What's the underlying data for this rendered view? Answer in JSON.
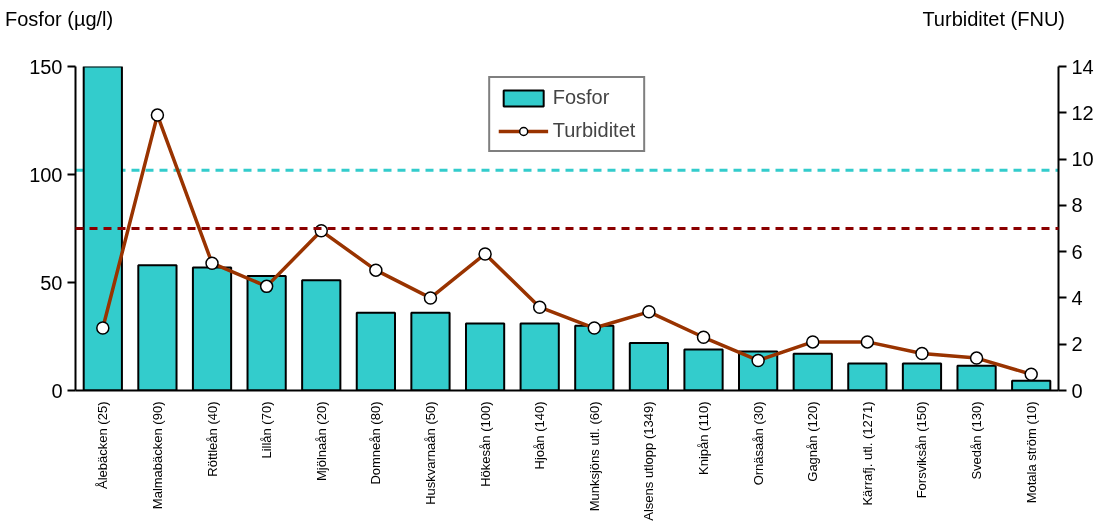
{
  "chart_data": {
    "type": "bar",
    "ylabel": "Fosfor (µg/l)",
    "y2label": "Turbiditet (FNU)",
    "categories": [
      "Ålebäcken (25)",
      "Malmabäcken (90)",
      "Röttleån (40)",
      "Lillån (70)",
      "Mjölnaån (20)",
      "Domneån (80)",
      "Huskvarnaån (50)",
      "Hökesån (100)",
      "Hjoån (140)",
      "Munksjöns utl. (60)",
      "Alsens utlopp (1349)",
      "Knipån (110)",
      "Ornäsaån (30)",
      "Gagnån (120)",
      "Kärrafj. utl. (1271)",
      "Forsviksån (150)",
      "Svedån (130)",
      "Motala ström (10)"
    ],
    "series": [
      {
        "name": "Fosfor",
        "color": "#33cccc",
        "values": [
          150,
          58,
          57,
          53,
          51,
          36,
          36,
          31,
          31,
          30,
          22,
          19,
          18,
          17,
          12.5,
          12.5,
          11.5,
          4.5
        ]
      },
      {
        "name": "Turbiditet",
        "type": "line",
        "axis": "y2",
        "color": "#993300",
        "marker": "circle",
        "line_style": "solid",
        "values": [
          2.7,
          11.9,
          5.5,
          4.5,
          6.9,
          5.2,
          4.0,
          5.9,
          3.6,
          2.7,
          3.4,
          2.3,
          1.3,
          2.1,
          2.1,
          1.6,
          1.4,
          0.7
        ]
      }
    ],
    "ylim": [
      0,
      150
    ],
    "yticks": [
      0,
      50,
      100,
      150
    ],
    "y2lim": [
      0,
      14
    ],
    "y2ticks": [
      0,
      2,
      4,
      6,
      8,
      10,
      12,
      14
    ],
    "ref_lines": [
      {
        "axis": "y",
        "value": 102,
        "color": "#33cccc",
        "line_style": "dashed"
      },
      {
        "axis": "y2",
        "value": 7,
        "color": "#8b0000",
        "line_style": "dashed"
      }
    ],
    "legend": "top"
  }
}
